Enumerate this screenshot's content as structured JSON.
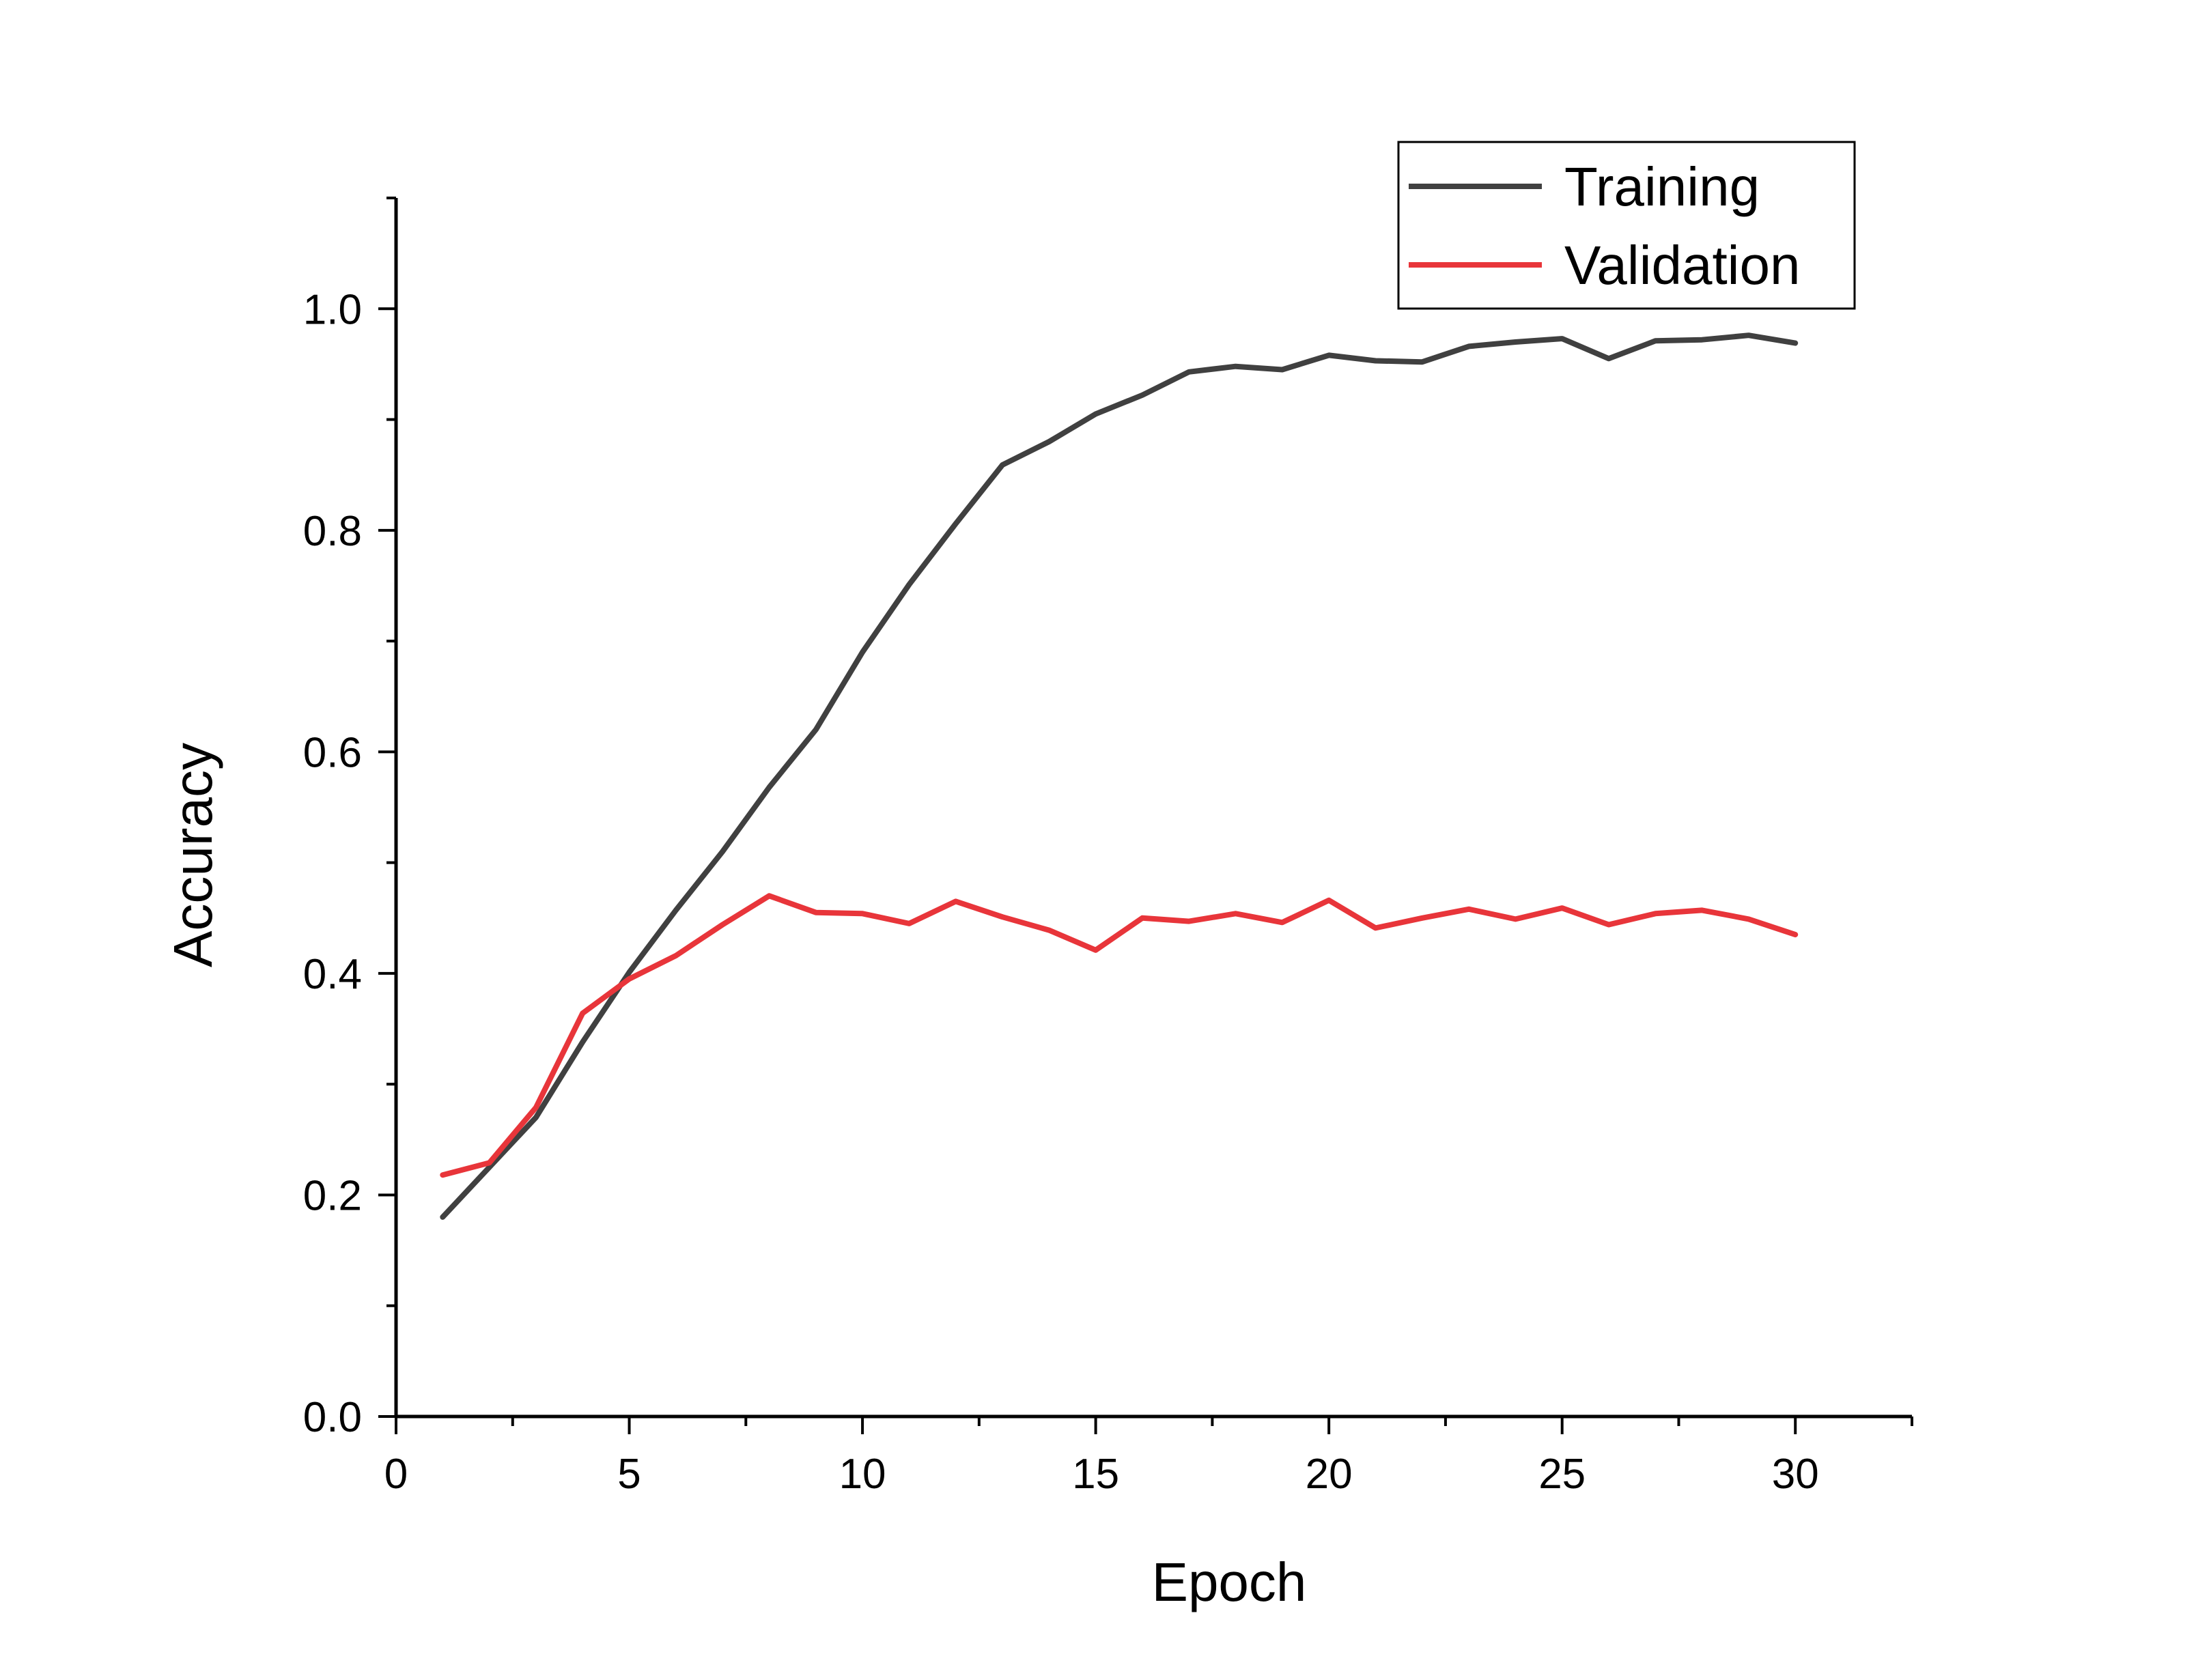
{
  "chart_data": {
    "type": "line",
    "title": "",
    "xlabel": "Epoch",
    "ylabel": "Accuracy",
    "xlim": [
      0,
      32.5
    ],
    "ylim": [
      0,
      1.1
    ],
    "x_ticks": [
      0,
      5,
      10,
      15,
      20,
      25,
      30
    ],
    "x_tick_labels": [
      "0",
      "5",
      "10",
      "15",
      "20",
      "25",
      "30"
    ],
    "x_minor_step": 2.5,
    "y_ticks": [
      0,
      0.2,
      0.4,
      0.6,
      0.8,
      1.0
    ],
    "y_tick_labels": [
      "0.0",
      "0.2",
      "0.4",
      "0.6",
      "0.8",
      "1.0"
    ],
    "y_minor_step": 0.1,
    "grid": false,
    "legend_position": "top-right",
    "x": [
      1,
      2,
      3,
      4,
      5,
      6,
      7,
      8,
      9,
      10,
      11,
      12,
      13,
      14,
      15,
      16,
      17,
      18,
      19,
      20,
      21,
      22,
      23,
      24,
      25,
      26,
      27,
      28,
      29,
      30
    ],
    "series": [
      {
        "name": "Training",
        "color": "#404040",
        "values": [
          0.18,
          0.225,
          0.27,
          0.338,
          0.401,
          0.457,
          0.51,
          0.568,
          0.62,
          0.69,
          0.751,
          0.806,
          0.859,
          0.88,
          0.905,
          0.922,
          0.943,
          0.948,
          0.945,
          0.958,
          0.953,
          0.952,
          0.966,
          0.97,
          0.973,
          0.955,
          0.971,
          0.972,
          0.976,
          0.969
        ]
      },
      {
        "name": "Validation",
        "color": "#e8353a",
        "values": [
          0.218,
          0.229,
          0.279,
          0.364,
          0.395,
          0.416,
          0.444,
          0.47,
          0.455,
          0.454,
          0.445,
          0.465,
          0.451,
          0.439,
          0.421,
          0.45,
          0.447,
          0.454,
          0.446,
          0.466,
          0.441,
          0.45,
          0.458,
          0.449,
          0.459,
          0.444,
          0.454,
          0.457,
          0.449,
          0.435
        ]
      }
    ]
  }
}
